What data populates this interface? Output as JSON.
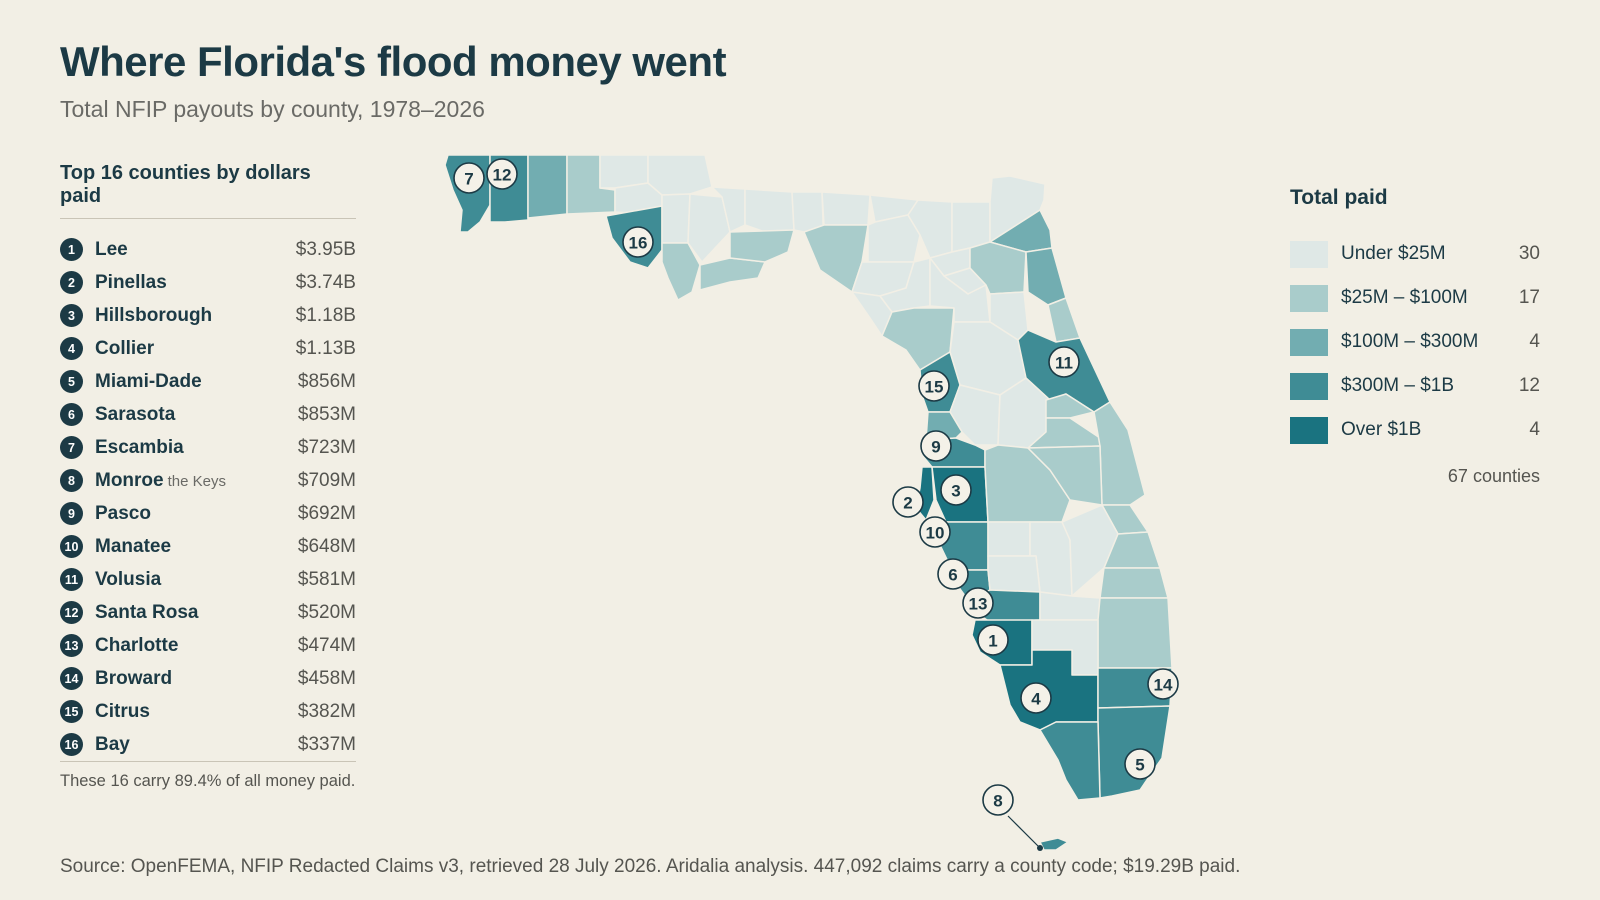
{
  "header": {
    "title": "Where Florida's flood money went",
    "subtitle": "Total NFIP payouts by county, 1978–2026"
  },
  "ranking": {
    "heading": "Top 16 counties by dollars paid",
    "items": [
      {
        "rank": "1",
        "county": "Lee",
        "note": "",
        "value": "$3.95B"
      },
      {
        "rank": "2",
        "county": "Pinellas",
        "note": "",
        "value": "$3.74B"
      },
      {
        "rank": "3",
        "county": "Hillsborough",
        "note": "",
        "value": "$1.18B"
      },
      {
        "rank": "4",
        "county": "Collier",
        "note": "",
        "value": "$1.13B"
      },
      {
        "rank": "5",
        "county": "Miami-Dade",
        "note": "",
        "value": "$856M"
      },
      {
        "rank": "6",
        "county": "Sarasota",
        "note": "",
        "value": "$853M"
      },
      {
        "rank": "7",
        "county": "Escambia",
        "note": "",
        "value": "$723M"
      },
      {
        "rank": "8",
        "county": "Monroe",
        "note": "the Keys",
        "value": "$709M"
      },
      {
        "rank": "9",
        "county": "Pasco",
        "note": "",
        "value": "$692M"
      },
      {
        "rank": "10",
        "county": "Manatee",
        "note": "",
        "value": "$648M"
      },
      {
        "rank": "11",
        "county": "Volusia",
        "note": "",
        "value": "$581M"
      },
      {
        "rank": "12",
        "county": "Santa Rosa",
        "note": "",
        "value": "$520M"
      },
      {
        "rank": "13",
        "county": "Charlotte",
        "note": "",
        "value": "$474M"
      },
      {
        "rank": "14",
        "county": "Broward",
        "note": "",
        "value": "$458M"
      },
      {
        "rank": "15",
        "county": "Citrus",
        "note": "",
        "value": "$382M"
      },
      {
        "rank": "16",
        "county": "Bay",
        "note": "",
        "value": "$337M"
      }
    ],
    "footnote": "These 16 carry 89.4% of all money paid."
  },
  "legend": {
    "title": "Total paid",
    "bins": [
      {
        "label": "Under $25M",
        "count": "30",
        "color": "#dfe8e6"
      },
      {
        "label": "$25M – $100M",
        "count": "17",
        "color": "#a9cccb"
      },
      {
        "label": "$100M – $300M",
        "count": "4",
        "color": "#72adb1"
      },
      {
        "label": "$300M – $1B",
        "count": "12",
        "color": "#3f8c95"
      },
      {
        "label": "Over $1B",
        "count": "4",
        "color": "#1a7380"
      }
    ],
    "total": "67 counties"
  },
  "colors": {
    "background": "#f2efe5",
    "ink": "#1c3a45"
  },
  "source": "Source: OpenFEMA, NFIP Redacted Claims v3, retrieved 28 July 2026. Aridalia analysis. 447,092 claims carry a county code; $19.29B paid."
}
